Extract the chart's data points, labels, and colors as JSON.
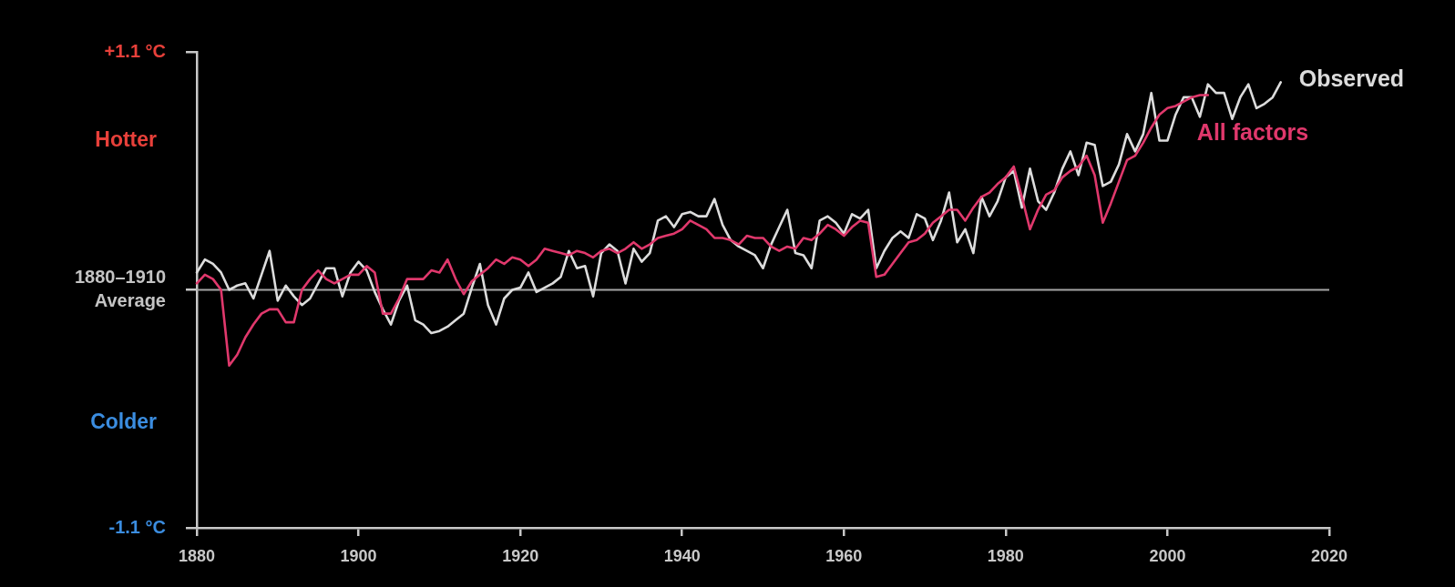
{
  "chart_data": {
    "type": "line",
    "xlim": [
      1880,
      2020
    ],
    "xticks": [
      1880,
      1900,
      1920,
      1940,
      1960,
      1980,
      2000,
      2020
    ],
    "ylim": [
      -1.1,
      1.1
    ],
    "yticks": [
      {
        "value": 1.1,
        "label": "+1.1 °C"
      },
      {
        "value": 0,
        "label": "1880–1910 Average"
      },
      {
        "value": -1.1,
        "label": "-1.1 °C"
      }
    ],
    "grid": false,
    "legend": false,
    "marker": "none",
    "line_style": "solid",
    "ref_lines": [
      {
        "axis": "y",
        "value": 0,
        "color": "#a6a6a6"
      }
    ],
    "annotations": [
      "Hotter",
      "Colder"
    ],
    "series": [
      {
        "name": "Observed",
        "color": "#dcdcdc",
        "x": [
          1880,
          1881,
          1882,
          1883,
          1884,
          1885,
          1886,
          1887,
          1888,
          1889,
          1890,
          1891,
          1892,
          1893,
          1894,
          1895,
          1896,
          1897,
          1898,
          1899,
          1900,
          1901,
          1902,
          1903,
          1904,
          1905,
          1906,
          1907,
          1908,
          1909,
          1910,
          1911,
          1912,
          1913,
          1914,
          1915,
          1916,
          1917,
          1918,
          1919,
          1920,
          1921,
          1922,
          1923,
          1924,
          1925,
          1926,
          1927,
          1928,
          1929,
          1930,
          1931,
          1932,
          1933,
          1934,
          1935,
          1936,
          1937,
          1938,
          1939,
          1940,
          1941,
          1942,
          1943,
          1944,
          1945,
          1946,
          1947,
          1948,
          1949,
          1950,
          1951,
          1952,
          1953,
          1954,
          1955,
          1956,
          1957,
          1958,
          1959,
          1960,
          1961,
          1962,
          1963,
          1964,
          1965,
          1966,
          1967,
          1968,
          1969,
          1970,
          1971,
          1972,
          1973,
          1974,
          1975,
          1976,
          1977,
          1978,
          1979,
          1980,
          1981,
          1982,
          1983,
          1984,
          1985,
          1986,
          1987,
          1988,
          1989,
          1990,
          1991,
          1992,
          1993,
          1994,
          1995,
          1996,
          1997,
          1998,
          1999,
          2000,
          2001,
          2002,
          2003,
          2004,
          2005,
          2006,
          2007,
          2008,
          2009,
          2010,
          2011,
          2012,
          2013,
          2014
        ],
        "values": [
          0.08,
          0.14,
          0.12,
          0.08,
          0.0,
          0.02,
          0.03,
          -0.04,
          0.07,
          0.18,
          -0.05,
          0.02,
          -0.03,
          -0.07,
          -0.04,
          0.03,
          0.1,
          0.1,
          -0.03,
          0.08,
          0.13,
          0.09,
          -0.01,
          -0.09,
          -0.16,
          -0.05,
          0.02,
          -0.14,
          -0.16,
          -0.2,
          -0.19,
          -0.17,
          -0.14,
          -0.11,
          0.01,
          0.12,
          -0.07,
          -0.16,
          -0.04,
          0.0,
          0.01,
          0.08,
          -0.01,
          0.01,
          0.03,
          0.06,
          0.18,
          0.1,
          0.11,
          -0.03,
          0.17,
          0.21,
          0.18,
          0.03,
          0.19,
          0.13,
          0.17,
          0.32,
          0.34,
          0.29,
          0.35,
          0.36,
          0.34,
          0.34,
          0.42,
          0.3,
          0.23,
          0.2,
          0.18,
          0.16,
          0.1,
          0.21,
          0.29,
          0.37,
          0.17,
          0.16,
          0.1,
          0.32,
          0.34,
          0.31,
          0.26,
          0.35,
          0.33,
          0.37,
          0.1,
          0.18,
          0.24,
          0.27,
          0.24,
          0.35,
          0.33,
          0.23,
          0.32,
          0.45,
          0.22,
          0.28,
          0.17,
          0.43,
          0.34,
          0.41,
          0.52,
          0.55,
          0.38,
          0.56,
          0.41,
          0.37,
          0.45,
          0.56,
          0.64,
          0.53,
          0.68,
          0.67,
          0.48,
          0.5,
          0.58,
          0.72,
          0.64,
          0.72,
          0.91,
          0.69,
          0.69,
          0.81,
          0.89,
          0.89,
          0.8,
          0.95,
          0.91,
          0.91,
          0.79,
          0.89,
          0.95,
          0.84,
          0.86,
          0.89,
          0.96
        ]
      },
      {
        "name": "All factors",
        "color": "#e0386c",
        "x": [
          1880,
          1881,
          1882,
          1883,
          1884,
          1885,
          1886,
          1887,
          1888,
          1889,
          1890,
          1891,
          1892,
          1893,
          1894,
          1895,
          1896,
          1897,
          1898,
          1899,
          1900,
          1901,
          1902,
          1903,
          1904,
          1905,
          1906,
          1907,
          1908,
          1909,
          1910,
          1911,
          1912,
          1913,
          1914,
          1915,
          1916,
          1917,
          1918,
          1919,
          1920,
          1921,
          1922,
          1923,
          1924,
          1925,
          1926,
          1927,
          1928,
          1929,
          1930,
          1931,
          1932,
          1933,
          1934,
          1935,
          1936,
          1937,
          1938,
          1939,
          1940,
          1941,
          1942,
          1943,
          1944,
          1945,
          1946,
          1947,
          1948,
          1949,
          1950,
          1951,
          1952,
          1953,
          1954,
          1955,
          1956,
          1957,
          1958,
          1959,
          1960,
          1961,
          1962,
          1963,
          1964,
          1965,
          1966,
          1967,
          1968,
          1969,
          1970,
          1971,
          1972,
          1973,
          1974,
          1975,
          1976,
          1977,
          1978,
          1979,
          1980,
          1981,
          1982,
          1983,
          1984,
          1985,
          1986,
          1987,
          1988,
          1989,
          1990,
          1991,
          1992,
          1993,
          1994,
          1995,
          1996,
          1997,
          1998,
          1999,
          2000,
          2001,
          2002,
          2003,
          2004,
          2005
        ],
        "values": [
          0.03,
          0.07,
          0.05,
          0.0,
          -0.35,
          -0.3,
          -0.22,
          -0.16,
          -0.11,
          -0.09,
          -0.09,
          -0.15,
          -0.15,
          0.0,
          0.05,
          0.09,
          0.05,
          0.03,
          0.05,
          0.07,
          0.07,
          0.11,
          0.08,
          -0.11,
          -0.11,
          -0.04,
          0.05,
          0.05,
          0.05,
          0.09,
          0.08,
          0.14,
          0.05,
          -0.02,
          0.04,
          0.07,
          0.1,
          0.14,
          0.12,
          0.15,
          0.14,
          0.11,
          0.14,
          0.19,
          0.18,
          0.17,
          0.16,
          0.18,
          0.17,
          0.15,
          0.18,
          0.19,
          0.17,
          0.19,
          0.22,
          0.19,
          0.21,
          0.24,
          0.25,
          0.26,
          0.28,
          0.32,
          0.3,
          0.28,
          0.24,
          0.24,
          0.23,
          0.21,
          0.25,
          0.24,
          0.24,
          0.2,
          0.18,
          0.2,
          0.19,
          0.24,
          0.23,
          0.26,
          0.3,
          0.28,
          0.25,
          0.29,
          0.32,
          0.31,
          0.06,
          0.07,
          0.12,
          0.17,
          0.22,
          0.23,
          0.26,
          0.31,
          0.34,
          0.37,
          0.37,
          0.32,
          0.38,
          0.43,
          0.45,
          0.49,
          0.52,
          0.57,
          0.43,
          0.28,
          0.37,
          0.44,
          0.46,
          0.52,
          0.55,
          0.57,
          0.62,
          0.53,
          0.31,
          0.4,
          0.5,
          0.6,
          0.62,
          0.68,
          0.75,
          0.81,
          0.84,
          0.85,
          0.87,
          0.89,
          0.9,
          0.9
        ]
      }
    ]
  }
}
